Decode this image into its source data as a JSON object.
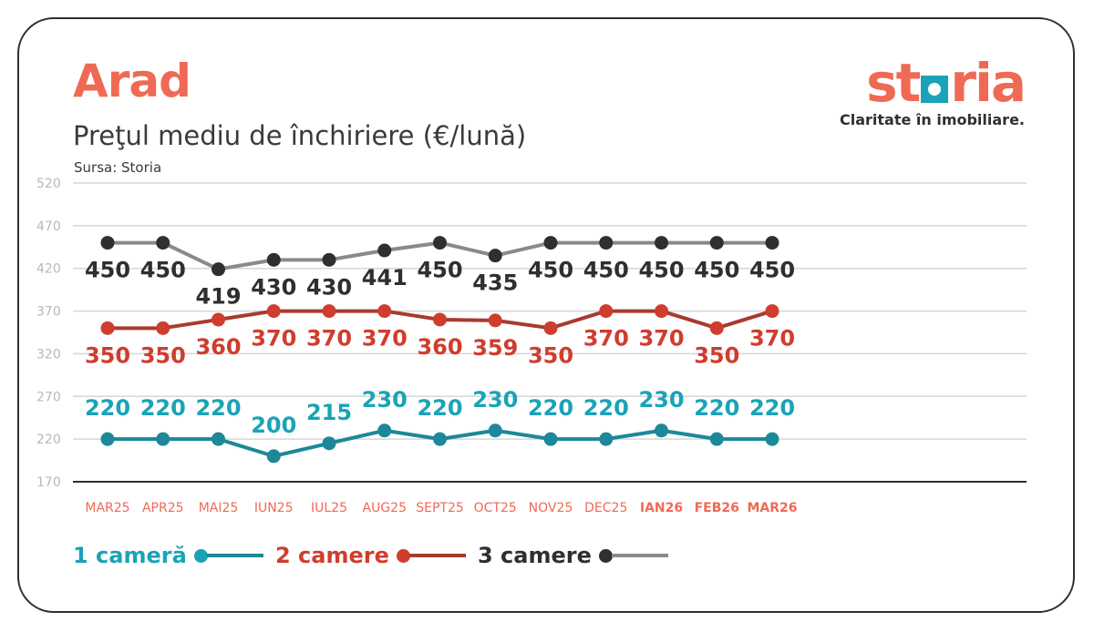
{
  "header": {
    "title": "Arad",
    "subtitle": "Preţul mediu de închiriere (€/lună)",
    "source": "Sursa: Storia"
  },
  "brand": {
    "name_before": "st",
    "name_after": "ria",
    "tagline": "Claritate în imobiliare."
  },
  "colors": {
    "accent": "#ef6a55",
    "cam1": "#1c8898",
    "cam1_label": "#1aa3b6",
    "cam2_line": "#a83a30",
    "cam2_label": "#cf3d2e",
    "cam3_line": "#8a8a8a",
    "cam3_label": "#2f2f2f",
    "grid": "#d6d6d6",
    "tick": "#b8b8b8"
  },
  "legend": [
    {
      "label": "1 cameră",
      "series": 0
    },
    {
      "label": "2 camere",
      "series": 1
    },
    {
      "label": "3 camere",
      "series": 2
    }
  ],
  "chart_data": {
    "type": "line",
    "title": "Preţul mediu de închiriere (€/lună)",
    "categories": [
      "MAR25",
      "APR25",
      "MAI25",
      "IUN25",
      "IUL25",
      "AUG25",
      "SEPT25",
      "OCT25",
      "NOV25",
      "DEC25",
      "IAN26",
      "FEB26",
      "MAR26"
    ],
    "bold_categories": [
      "IAN26",
      "FEB26",
      "MAR26"
    ],
    "yticks": [
      170,
      220,
      270,
      320,
      370,
      420,
      470,
      520
    ],
    "ylim": [
      170,
      520
    ],
    "grid": true,
    "legend_position": "bottom",
    "series": [
      {
        "name": "1 cameră",
        "values": [
          220,
          220,
          220,
          200,
          215,
          230,
          220,
          230,
          220,
          220,
          230,
          220,
          220
        ],
        "label_position": "above"
      },
      {
        "name": "2 camere",
        "values": [
          350,
          350,
          360,
          370,
          370,
          370,
          360,
          359,
          350,
          370,
          370,
          350,
          370
        ],
        "label_position": "below"
      },
      {
        "name": "3 camere",
        "values": [
          450,
          450,
          419,
          430,
          430,
          441,
          450,
          435,
          450,
          450,
          450,
          450,
          450
        ],
        "label_position": "below"
      }
    ]
  }
}
